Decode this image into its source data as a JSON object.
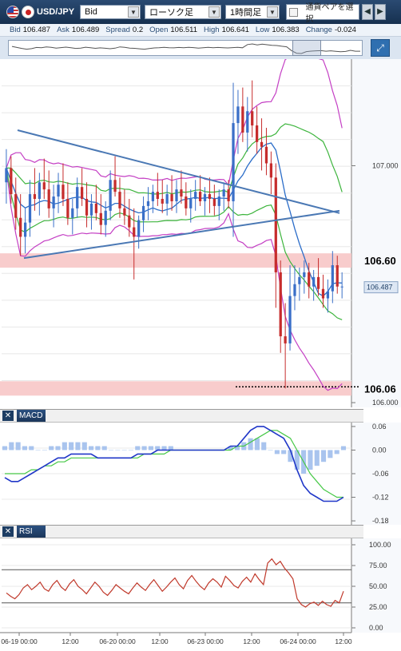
{
  "toolbar": {
    "symbol": "USD/JPY",
    "price_type": "Bid",
    "chart_type": "ローソク足",
    "timeframe": "1時間足",
    "pair_select_label": "通貨ペアを選択",
    "prev_icon": "chevron-left-icon",
    "next_icon": "chevron-right-icon"
  },
  "quote": [
    {
      "key": "Bid",
      "value": "106.487"
    },
    {
      "key": "Ask",
      "value": "106.489"
    },
    {
      "key": "Spread",
      "value": "0.2"
    },
    {
      "key": "Open",
      "value": "106.511"
    },
    {
      "key": "High",
      "value": "106.641"
    },
    {
      "key": "Low",
      "value": "106.383"
    },
    {
      "key": "Change",
      "value": "-0.024"
    }
  ],
  "colors": {
    "up": "#3a6fc8",
    "down": "#c62c2c",
    "bb_band": "#c43fc4",
    "bb_inner": "#3cb43c",
    "ma": "#2a6cc8",
    "macd": "#2037c8",
    "signal": "#46c846",
    "hist": "#a9c4ee",
    "rsi": "#c0392b",
    "zone": "#f7c6c6"
  },
  "panels": {
    "macd_title": "MACD",
    "rsi_title": "RSI"
  },
  "chart_data": [
    {
      "type": "candlestick",
      "symbol": "USD/JPY",
      "timeframe": "1H",
      "ylim": [
        105.98,
        107.45
      ],
      "y_ticks": [
        "107.000",
        "106.000"
      ],
      "current_price_label": "106.487",
      "annotations": [
        {
          "label": "106.60",
          "price": 106.6,
          "kind": "resistance-zone"
        },
        {
          "label": "106.06",
          "price": 106.06,
          "kind": "support-zone"
        }
      ],
      "x_ticks": [
        "06-19 00:00",
        "12:00",
        "06-20 00:00",
        "12:00",
        "06-23 00:00",
        "12:00",
        "06-24 00:00",
        "12:00"
      ],
      "candles_ohlc": [
        [
          106.93,
          107.07,
          106.84,
          106.99
        ],
        [
          106.99,
          107.04,
          106.84,
          106.88
        ],
        [
          106.88,
          106.95,
          106.73,
          106.78
        ],
        [
          106.78,
          106.88,
          106.62,
          106.7
        ],
        [
          106.7,
          106.82,
          106.63,
          106.76
        ],
        [
          106.76,
          106.94,
          106.7,
          106.88
        ],
        [
          106.88,
          106.99,
          106.81,
          106.86
        ],
        [
          106.86,
          106.97,
          106.79,
          106.93
        ],
        [
          106.93,
          107.03,
          106.86,
          106.9
        ],
        [
          106.9,
          106.98,
          106.78,
          106.82
        ],
        [
          106.82,
          106.92,
          106.74,
          106.87
        ],
        [
          106.87,
          106.97,
          106.8,
          106.92
        ],
        [
          106.92,
          107.01,
          106.83,
          106.86
        ],
        [
          106.86,
          106.93,
          106.75,
          106.78
        ],
        [
          106.78,
          106.86,
          106.71,
          106.82
        ],
        [
          106.82,
          106.95,
          106.78,
          106.91
        ],
        [
          106.91,
          106.99,
          106.83,
          106.86
        ],
        [
          106.86,
          106.93,
          106.74,
          106.79
        ],
        [
          106.79,
          106.88,
          106.73,
          106.84
        ],
        [
          106.84,
          106.92,
          106.77,
          106.8
        ],
        [
          106.8,
          106.88,
          106.71,
          106.75
        ],
        [
          106.75,
          106.85,
          106.7,
          106.81
        ],
        [
          106.81,
          106.98,
          106.77,
          106.94
        ],
        [
          106.94,
          107.04,
          106.87,
          106.89
        ],
        [
          106.89,
          106.95,
          106.78,
          106.82
        ],
        [
          106.82,
          106.9,
          106.75,
          106.79
        ],
        [
          106.79,
          106.86,
          106.7,
          106.74
        ],
        [
          106.74,
          106.82,
          106.52,
          106.7
        ],
        [
          106.7,
          106.79,
          106.65,
          106.77
        ],
        [
          106.77,
          106.87,
          106.72,
          106.83
        ],
        [
          106.83,
          106.91,
          106.77,
          106.85
        ],
        [
          106.85,
          106.92,
          106.8,
          106.89
        ],
        [
          106.89,
          106.97,
          106.83,
          106.86
        ],
        [
          106.86,
          106.94,
          106.8,
          106.84
        ],
        [
          106.84,
          106.92,
          106.79,
          106.88
        ],
        [
          106.88,
          106.96,
          106.81,
          106.85
        ],
        [
          106.85,
          106.94,
          106.8,
          106.9
        ],
        [
          106.9,
          106.98,
          106.84,
          106.87
        ],
        [
          106.87,
          106.93,
          106.79,
          106.82
        ],
        [
          106.82,
          106.9,
          106.76,
          106.86
        ],
        [
          106.86,
          106.94,
          106.81,
          106.89
        ],
        [
          106.89,
          106.96,
          106.83,
          106.85
        ],
        [
          106.85,
          106.91,
          106.79,
          106.88
        ],
        [
          106.88,
          106.95,
          106.8,
          106.86
        ],
        [
          106.86,
          106.92,
          106.79,
          106.83
        ],
        [
          106.83,
          106.9,
          106.77,
          106.87
        ],
        [
          106.87,
          106.93,
          106.81,
          106.9
        ],
        [
          106.9,
          106.94,
          106.82,
          106.85
        ],
        [
          106.85,
          107.35,
          106.7,
          107.18
        ],
        [
          107.18,
          107.32,
          107.05,
          107.25
        ],
        [
          107.25,
          107.33,
          107.1,
          107.14
        ],
        [
          107.14,
          107.29,
          107.06,
          107.23
        ],
        [
          107.23,
          107.36,
          107.12,
          107.17
        ],
        [
          107.17,
          107.25,
          107.05,
          107.1
        ],
        [
          107.1,
          107.2,
          106.98,
          107.08
        ],
        [
          107.08,
          107.16,
          106.96,
          107.01
        ],
        [
          107.01,
          107.06,
          106.88,
          106.95
        ],
        [
          106.95,
          107.01,
          106.4,
          106.55
        ],
        [
          106.55,
          106.6,
          106.21,
          106.28
        ],
        [
          106.28,
          106.42,
          106.06,
          106.25
        ],
        [
          106.25,
          106.58,
          106.22,
          106.45
        ],
        [
          106.45,
          106.58,
          106.39,
          106.5
        ],
        [
          106.5,
          106.57,
          106.43,
          106.53
        ],
        [
          106.53,
          106.6,
          106.46,
          106.55
        ],
        [
          106.55,
          106.59,
          106.44,
          106.49
        ],
        [
          106.49,
          106.56,
          106.43,
          106.53
        ],
        [
          106.53,
          106.61,
          106.45,
          106.48
        ],
        [
          106.48,
          106.54,
          106.4,
          106.44
        ],
        [
          106.44,
          106.52,
          106.38,
          106.47
        ],
        [
          106.47,
          106.64,
          106.42,
          106.58
        ],
        [
          106.58,
          106.62,
          106.46,
          106.49
        ],
        [
          106.49,
          106.55,
          106.44,
          106.49
        ]
      ]
    },
    {
      "type": "line",
      "name": "MACD",
      "ylim": [
        -0.19,
        0.07
      ],
      "y_ticks": [
        "0.06",
        "0.00",
        "-0.06",
        "-0.12",
        "-0.18"
      ],
      "x_ticks": [
        "06-19 00:00",
        "12:00",
        "06-20 00:00",
        "12:00",
        "06-23 00:00",
        "12:00",
        "06-24 00:00",
        "12:00"
      ],
      "macd": [
        -0.07,
        -0.08,
        -0.08,
        -0.07,
        -0.06,
        -0.05,
        -0.04,
        -0.03,
        -0.02,
        -0.02,
        -0.01,
        -0.01,
        -0.01,
        -0.01,
        -0.02,
        -0.02,
        -0.02,
        -0.02,
        -0.02,
        -0.02,
        -0.01,
        -0.01,
        -0.01,
        0.0,
        0.0,
        0.0,
        0.0,
        0.0,
        0.0,
        0.0,
        0.0,
        0.0,
        0.0,
        0.0,
        0.01,
        0.01,
        0.03,
        0.05,
        0.06,
        0.06,
        0.05,
        0.04,
        0.03,
        0.0,
        -0.05,
        -0.09,
        -0.11,
        -0.12,
        -0.13,
        -0.13,
        -0.13,
        -0.12
      ],
      "signal": [
        -0.06,
        -0.06,
        -0.06,
        -0.06,
        -0.05,
        -0.05,
        -0.04,
        -0.04,
        -0.03,
        -0.03,
        -0.02,
        -0.02,
        -0.02,
        -0.02,
        -0.02,
        -0.02,
        -0.02,
        -0.02,
        -0.02,
        -0.02,
        -0.02,
        -0.01,
        -0.01,
        -0.01,
        -0.01,
        0.0,
        0.0,
        0.0,
        0.0,
        0.0,
        0.0,
        0.0,
        0.0,
        0.0,
        0.0,
        0.01,
        0.01,
        0.02,
        0.03,
        0.04,
        0.05,
        0.05,
        0.04,
        0.03,
        0.0,
        -0.03,
        -0.06,
        -0.08,
        -0.1,
        -0.11,
        -0.12,
        -0.12
      ],
      "histogram": [
        0.01,
        0.02,
        0.02,
        0.01,
        0.01,
        0.0,
        0.0,
        0.01,
        0.01,
        0.02,
        0.02,
        0.02,
        0.02,
        0.01,
        0.01,
        0.01,
        0.0,
        0.0,
        0.0,
        0.0,
        0.01,
        0.01,
        0.01,
        0.01,
        0.01,
        0.01,
        0.0,
        0.0,
        0.0,
        0.0,
        0.0,
        0.0,
        0.0,
        0.0,
        0.01,
        0.01,
        0.02,
        0.03,
        0.03,
        0.02,
        0.0,
        -0.01,
        -0.01,
        -0.03,
        -0.05,
        -0.06,
        -0.05,
        -0.04,
        -0.03,
        -0.02,
        -0.01,
        0.01
      ]
    },
    {
      "type": "line",
      "name": "RSI",
      "ylim": [
        0,
        100
      ],
      "y_ticks": [
        "100.00",
        "75.00",
        "50.00",
        "25.00",
        "0.00"
      ],
      "levels": [
        70,
        30
      ],
      "x_ticks": [
        "06-19 00:00",
        "12:00",
        "06-20 00:00",
        "12:00",
        "06-23 00:00",
        "12:00",
        "06-24 00:00",
        "12:00"
      ],
      "values": [
        42,
        38,
        35,
        40,
        48,
        52,
        46,
        50,
        55,
        47,
        44,
        52,
        57,
        49,
        45,
        53,
        58,
        50,
        46,
        41,
        48,
        55,
        50,
        43,
        39,
        45,
        52,
        48,
        44,
        41,
        48,
        54,
        49,
        45,
        52,
        58,
        51,
        44,
        49,
        55,
        60,
        52,
        47,
        57,
        63,
        56,
        50,
        46,
        54,
        59,
        55,
        49,
        62,
        57,
        51,
        48,
        56,
        61,
        55,
        65,
        58,
        52,
        78,
        83,
        76,
        80,
        72,
        66,
        59,
        35,
        28,
        25,
        29,
        31,
        27,
        32,
        28,
        26,
        33,
        30,
        44
      ]
    }
  ]
}
